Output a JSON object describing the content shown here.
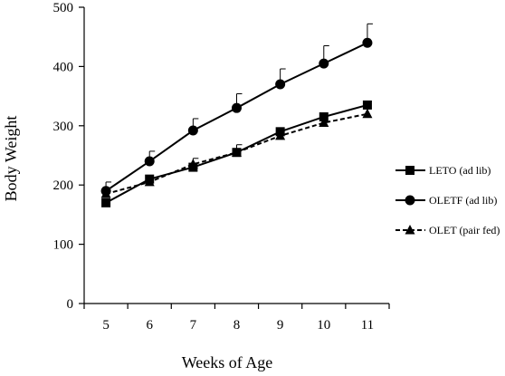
{
  "chart_data": {
    "type": "line",
    "title": "",
    "xlabel": "Weeks of Age",
    "ylabel": "Body Weight",
    "categories": [
      "5",
      "6",
      "7",
      "8",
      "9",
      "10",
      "11"
    ],
    "x": [
      5,
      6,
      7,
      8,
      9,
      10,
      11
    ],
    "ylim": [
      0,
      500
    ],
    "yticks": [
      "0",
      "100",
      "200",
      "300",
      "400",
      "500"
    ],
    "grid": false,
    "legend_position": "right",
    "series": [
      {
        "name": "LETO (ad lib)",
        "marker": "square",
        "line_style": "solid",
        "color": "#000000",
        "values": [
          170,
          210,
          230,
          255,
          290,
          315,
          335
        ],
        "error": [
          0,
          0,
          0,
          0,
          0,
          0,
          0
        ]
      },
      {
        "name": "OLETF (ad lib)",
        "marker": "circle",
        "line_style": "solid",
        "color": "#000000",
        "values": [
          190,
          240,
          292,
          330,
          370,
          405,
          440
        ],
        "error": [
          15,
          17,
          20,
          24,
          26,
          30,
          32
        ]
      },
      {
        "name": "OLET (pair fed)",
        "marker": "triangle",
        "line_style": "dashed",
        "color": "#000000",
        "values": [
          185,
          205,
          235,
          255,
          283,
          305,
          320
        ],
        "error": [
          0,
          0,
          10,
          13,
          0,
          0,
          0
        ]
      }
    ]
  }
}
